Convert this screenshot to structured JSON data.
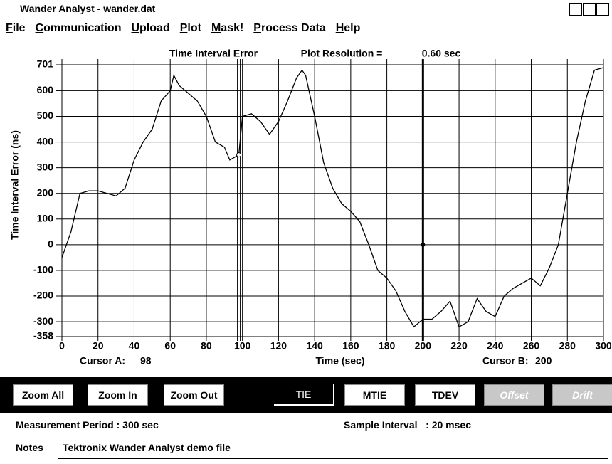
{
  "window": {
    "title": "Wander Analyst - wander.dat"
  },
  "menu": [
    "File",
    "Communication",
    "Upload",
    "Plot",
    "Mask!",
    "Process Data",
    "Help"
  ],
  "chart_data": {
    "type": "line",
    "title": "Time Interval Error",
    "resolution_label": "Plot Resolution =",
    "resolution_value": "0.60 sec",
    "x_label": "Time (sec)",
    "y_label": "Time Interval Error (ns)",
    "x": [
      0,
      5,
      10,
      15,
      20,
      25,
      30,
      35,
      40,
      45,
      50,
      55,
      60,
      62,
      65,
      70,
      75,
      80,
      85,
      90,
      93,
      98,
      100,
      105,
      110,
      115,
      120,
      125,
      130,
      133,
      135,
      140,
      145,
      150,
      155,
      160,
      165,
      170,
      175,
      180,
      185,
      190,
      195,
      200,
      205,
      210,
      215,
      220,
      225,
      230,
      235,
      240,
      245,
      250,
      255,
      260,
      265,
      270,
      275,
      280,
      285,
      290,
      295,
      300
    ],
    "series": [
      {
        "name": "TIE",
        "color": "#000000",
        "values": [
          -50,
          50,
          200,
          210,
          210,
          200,
          190,
          220,
          330,
          400,
          450,
          560,
          600,
          660,
          620,
          590,
          560,
          500,
          400,
          380,
          330,
          350,
          500,
          510,
          480,
          430,
          480,
          560,
          650,
          680,
          660,
          500,
          320,
          220,
          160,
          130,
          90,
          0,
          -100,
          -130,
          -180,
          -260,
          -320,
          -290,
          -290,
          -260,
          -220,
          -320,
          -300,
          -210,
          -260,
          -280,
          -200,
          -170,
          -150,
          -130,
          -160,
          -90,
          0,
          200,
          400,
          560,
          680,
          690
        ]
      }
    ],
    "xlim": [
      0,
      300
    ],
    "ylim": [
      -358,
      701
    ],
    "xticks": [
      0,
      20,
      40,
      60,
      80,
      100,
      120,
      140,
      160,
      180,
      200,
      220,
      240,
      260,
      280,
      300
    ],
    "yticks": [
      701,
      600,
      500,
      400,
      300,
      200,
      100,
      0,
      -100,
      -200,
      -300,
      -358
    ],
    "grid": true,
    "cursor_a": {
      "label": "Cursor A:",
      "value": 98
    },
    "cursor_b": {
      "label": "Cursor B:",
      "value": 200
    }
  },
  "buttons": [
    {
      "label": "Zoom All",
      "enabled": true
    },
    {
      "label": "Zoom In",
      "enabled": true
    },
    {
      "label": "Zoom Out",
      "enabled": true
    },
    {
      "label": "TIE",
      "enabled": true,
      "selected": true
    },
    {
      "label": "MTIE",
      "enabled": true
    },
    {
      "label": "TDEV",
      "enabled": true
    },
    {
      "label": "Offset",
      "enabled": false
    },
    {
      "label": "Drift",
      "enabled": false
    }
  ],
  "status": {
    "period": "Measurement Period : 300 sec",
    "interval": "Sample Interval   : 20 msec",
    "notes_label": "Notes",
    "notes": "Tektronix Wander Analyst demo file"
  }
}
